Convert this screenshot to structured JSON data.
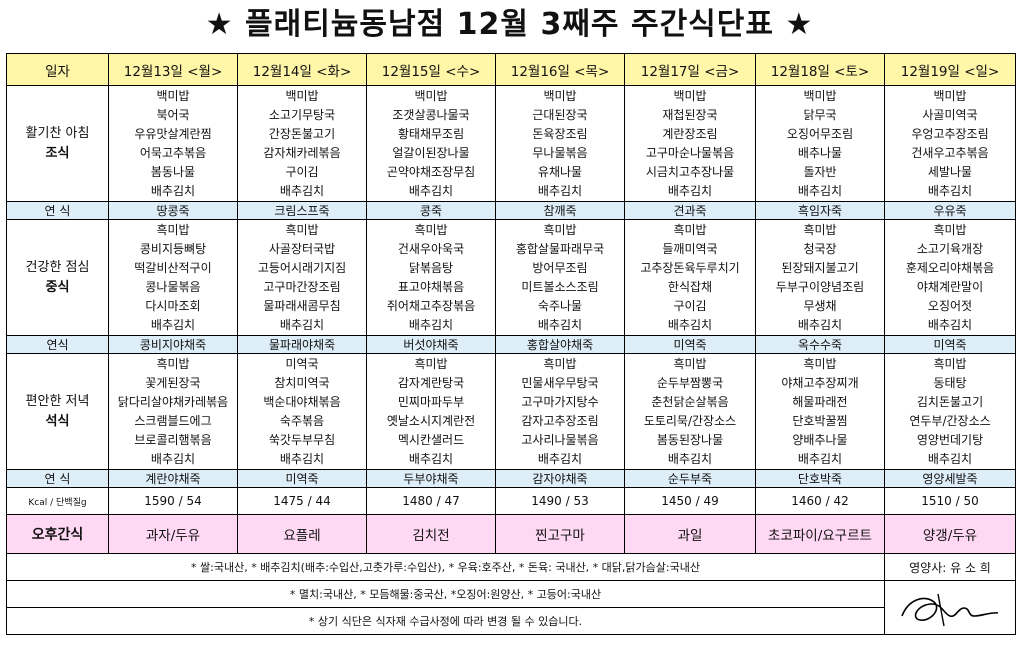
{
  "title": "★ 플래티늄동남점 12월 3째주 주간식단표 ★",
  "header": {
    "label": "일자",
    "days": [
      "12월13일 <월>",
      "12월14일 <화>",
      "12월15일 <수>",
      "12월16일 <목>",
      "12월17일 <금>",
      "12월18일 <토>",
      "12월19일 <일>"
    ]
  },
  "breakfast": {
    "label_line1": "활기찬 아침",
    "label_line2": "조식",
    "days": [
      [
        "백미밥",
        "북어국",
        "우유맛살계란찜",
        "어묵고추볶음",
        "봄동나물",
        "배추김치"
      ],
      [
        "백미밥",
        "소고기무탕국",
        "간장돈불고기",
        "감자채카레볶음",
        "구이김",
        "배추김치"
      ],
      [
        "백미밥",
        "조갯살콩나물국",
        "황태채무조림",
        "얼갈이된장나물",
        "곤약야채조장무침",
        "배추김치"
      ],
      [
        "백미밥",
        "근대된장국",
        "돈육장조림",
        "무나물볶음",
        "유채나물",
        "배추김치"
      ],
      [
        "백미밥",
        "재첩된장국",
        "계란장조림",
        "고구마순나물볶음",
        "시금치고추장나물",
        "배추김치"
      ],
      [
        "백미밥",
        "닭무국",
        "오징어무조림",
        "배추나물",
        "돌자반",
        "배추김치"
      ],
      [
        "백미밥",
        "사골미역국",
        "우엉고추장조림",
        "건새우고추볶음",
        "세발나물",
        "배추김치"
      ]
    ]
  },
  "snack1": {
    "label": "연   식",
    "days": [
      "땅콩죽",
      "크림스프죽",
      "콩죽",
      "참깨죽",
      "견과죽",
      "흑임자죽",
      "우유죽"
    ]
  },
  "lunch": {
    "label_line1": "건강한 점심",
    "label_line2": "중식",
    "days": [
      [
        "흑미밥",
        "콩비지등뼈탕",
        "떡갈비산적구이",
        "콩나물볶음",
        "다시마조회",
        "배추김치"
      ],
      [
        "흑미밥",
        "사골장터국밥",
        "고등어시래기지짐",
        "고구마간장조림",
        "물파래새콤무침",
        "배추김치"
      ],
      [
        "흑미밥",
        "건새우아욱국",
        "닭볶음탕",
        "표고야채볶음",
        "쥐어채고추장볶음",
        "배추김치"
      ],
      [
        "흑미밥",
        "홍합살물파래무국",
        "방어무조림",
        "미트볼소스조림",
        "숙주나물",
        "배추김치"
      ],
      [
        "흑미밥",
        "들깨미역국",
        "고추장돈육두루치기",
        "한식잡채",
        "구이김",
        "배추김치"
      ],
      [
        "흑미밥",
        "청국장",
        "된장돼지불고기",
        "두부구이양념조림",
        "무생채",
        "배추김치"
      ],
      [
        "흑미밥",
        "소고기육개장",
        "훈제오리야채볶음",
        "야채계란말이",
        "오징어젓",
        "배추김치"
      ]
    ]
  },
  "snack2": {
    "label": "연식",
    "days": [
      "콩비지야채죽",
      "물파래야채죽",
      "버섯야채죽",
      "홍합살야채죽",
      "미역죽",
      "옥수수죽",
      "미역죽"
    ]
  },
  "dinner": {
    "label_line1": "편안한 저녁",
    "label_line2": "석식",
    "days": [
      [
        "흑미밥",
        "꽃게된장국",
        "닭다리살야채카레볶음",
        "스크램블드에그",
        "브로콜리햄볶음",
        "배추김치"
      ],
      [
        "미역국",
        "참치미역국",
        "백순대야채볶음",
        "숙주볶음",
        "쑥갓두부무침",
        "배추김치"
      ],
      [
        "흑미밥",
        "감자계란탕국",
        "민찌마파두부",
        "옛날소시지계란전",
        "멕시칸샐러드",
        "배추김치"
      ],
      [
        "흑미밥",
        "민물새우무탕국",
        "고구마가지탕수",
        "감자고추장조림",
        "고사리나물볶음",
        "배추김치"
      ],
      [
        "흑미밥",
        "순두부짬뽕국",
        "춘천닭순살볶음",
        "도토리묵/간장소스",
        "봄동된장나물",
        "배추김치"
      ],
      [
        "흑미밥",
        "야채고추장찌개",
        "해물파래전",
        "단호박꿀찜",
        "양배추나물",
        "배추김치"
      ],
      [
        "흑미밥",
        "동태탕",
        "김치돈불고기",
        "연두부/간장소스",
        "영양번데기탕",
        "배추김치"
      ]
    ]
  },
  "snack3": {
    "label": "연   식",
    "days": [
      "계란야채죽",
      "미역죽",
      "두부야채죽",
      "감자야채죽",
      "순두부죽",
      "단호박죽",
      "영양세발죽"
    ]
  },
  "nutrition": {
    "label": "Kcal / 단백질g",
    "days": [
      "1590 / 54",
      "1475 / 44",
      "1480 / 47",
      "1490 / 53",
      "1450 / 49",
      "1460 / 42",
      "1510 / 50"
    ]
  },
  "afternoon": {
    "label": "오후간식",
    "days": [
      "과자/두유",
      "요플레",
      "김치전",
      "찐고구마",
      "과일",
      "초코파이/요구르트",
      "양갱/두유"
    ]
  },
  "notes": {
    "line1": "* 쌀:국내산, * 배추김치(배추:수입산,고춧가루:수입산), * 우육:호주산, * 돈육: 국내산, * 대닭,닭가슴살:국내산",
    "line2": "* 멸치:국내산, * 모듬해물:중국산, *오징어:원양산, * 고등어:국내산",
    "line3": "* 상기 식단은 식자재 수급사정에 따라 변경 될 수 있습니다.",
    "dietitian": "영양사: 유 소 희"
  }
}
